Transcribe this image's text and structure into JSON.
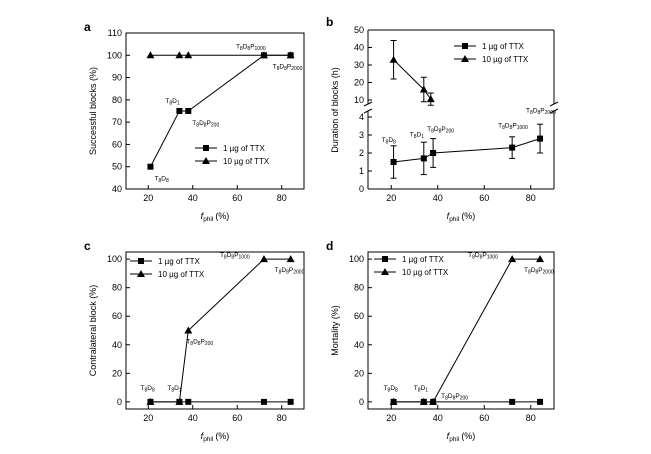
{
  "chart_data": [
    {
      "type": "line",
      "panel_letter": "a",
      "xlabel_main": "f",
      "xlabel_sub": "phil",
      "xlabel_unit": "(%)",
      "ylabel": "Successful blocks (%)",
      "xlim": [
        10,
        90
      ],
      "ylim": [
        40,
        110
      ],
      "xticks": [
        20,
        40,
        60,
        80
      ],
      "yticks": [
        40,
        50,
        60,
        70,
        80,
        90,
        100,
        110
      ],
      "legend_position": "lower-right",
      "series": [
        {
          "name": "1 µg of TTX",
          "marker": "square",
          "x": [
            21,
            34,
            38,
            72,
            84
          ],
          "y": [
            50,
            75,
            75,
            100,
            100
          ]
        },
        {
          "name": "10 µg of TTX",
          "marker": "triangle",
          "x": [
            21,
            34,
            38,
            72,
            84
          ],
          "y": [
            100,
            100,
            100,
            100,
            100
          ]
        }
      ],
      "annotations": [
        {
          "base": "T",
          "parts": [
            [
              "8",
              "sub"
            ],
            [
              "D",
              ""
            ],
            [
              "8",
              "sub"
            ]
          ],
          "x": 21,
          "y": 50
        },
        {
          "base": "T",
          "parts": [
            [
              "8",
              "sub"
            ],
            [
              "D",
              ""
            ],
            [
              "1",
              "sub"
            ]
          ],
          "x": 34,
          "y": 75
        },
        {
          "base": "T",
          "parts": [
            [
              "8",
              "sub"
            ],
            [
              "D",
              ""
            ],
            [
              "8",
              "sub"
            ],
            [
              "P",
              ""
            ],
            [
              "200",
              "sub"
            ]
          ],
          "x": 38,
          "y": 75
        },
        {
          "base": "T",
          "parts": [
            [
              "8",
              "sub"
            ],
            [
              "D",
              ""
            ],
            [
              "8",
              "sub"
            ],
            [
              "P",
              ""
            ],
            [
              "1000",
              "sub"
            ]
          ],
          "x": 72,
          "y": 100
        },
        {
          "base": "T",
          "parts": [
            [
              "8",
              "sub"
            ],
            [
              "D",
              ""
            ],
            [
              "8",
              "sub"
            ],
            [
              "P",
              ""
            ],
            [
              "2000",
              "sub"
            ]
          ],
          "x": 84,
          "y": 100
        }
      ]
    },
    {
      "type": "line",
      "panel_letter": "b",
      "xlabel_main": "f",
      "xlabel_sub": "phil",
      "xlabel_unit": "(%)",
      "ylabel": "Duration of blocks (h)",
      "xlim": [
        10,
        90
      ],
      "ylim_lower": [
        0,
        4
      ],
      "ylim_upper": [
        10,
        50
      ],
      "yticks_lower": [
        0,
        1,
        2,
        3,
        4
      ],
      "yticks_upper": [
        10,
        20,
        30,
        40,
        50
      ],
      "xticks": [
        20,
        40,
        60,
        80
      ],
      "broken_axis": true,
      "legend_position": "top-right",
      "series": [
        {
          "name": "1 µg of TTX",
          "marker": "square",
          "x": [
            21,
            34,
            38,
            72,
            84
          ],
          "y": [
            1.5,
            1.7,
            2.0,
            2.3,
            2.8
          ],
          "err": [
            0.9,
            0.9,
            0.8,
            0.6,
            0.8
          ]
        },
        {
          "name": "10 µg of TTX",
          "marker": "triangle",
          "x": [
            21,
            34,
            37
          ],
          "y": [
            33,
            16,
            10.5
          ],
          "err": [
            11,
            7,
            3.5
          ]
        }
      ],
      "annotations": [
        {
          "base": "T",
          "parts": [
            [
              "8",
              "sub"
            ],
            [
              "D",
              ""
            ],
            [
              "8",
              "sub"
            ]
          ],
          "x": 21,
          "y": 1.5
        },
        {
          "base": "T",
          "parts": [
            [
              "8",
              "sub"
            ],
            [
              "D",
              ""
            ],
            [
              "1",
              "sub"
            ]
          ],
          "x": 34,
          "y": 1.7
        },
        {
          "base": "T",
          "parts": [
            [
              "8",
              "sub"
            ],
            [
              "D",
              ""
            ],
            [
              "8",
              "sub"
            ],
            [
              "P",
              ""
            ],
            [
              "200",
              "sub"
            ]
          ],
          "x": 38,
          "y": 2.0
        },
        {
          "base": "T",
          "parts": [
            [
              "8",
              "sub"
            ],
            [
              "D",
              ""
            ],
            [
              "8",
              "sub"
            ],
            [
              "P",
              ""
            ],
            [
              "1000",
              "sub"
            ]
          ],
          "x": 72,
          "y": 2.3
        },
        {
          "base": "T",
          "parts": [
            [
              "8",
              "sub"
            ],
            [
              "D",
              ""
            ],
            [
              "8",
              "sub"
            ],
            [
              "P",
              ""
            ],
            [
              "2000",
              "sub"
            ]
          ],
          "x": 84,
          "y": 2.8
        }
      ]
    },
    {
      "type": "line",
      "panel_letter": "c",
      "xlabel_main": "f",
      "xlabel_sub": "phil",
      "xlabel_unit": "(%)",
      "ylabel": "Contralateral block (%)",
      "xlim": [
        10,
        90
      ],
      "ylim": [
        -5,
        105
      ],
      "xticks": [
        20,
        40,
        60,
        80
      ],
      "yticks": [
        0,
        20,
        40,
        60,
        80,
        100
      ],
      "legend_position": "top-left",
      "series": [
        {
          "name": "1 µg of TTX",
          "marker": "square",
          "x": [
            21,
            34,
            38,
            72,
            84
          ],
          "y": [
            0,
            0,
            0,
            0,
            0
          ]
        },
        {
          "name": "10 µg of TTX",
          "marker": "triangle",
          "x": [
            21,
            34,
            38,
            72,
            84
          ],
          "y": [
            0,
            0,
            50,
            100,
            100
          ]
        }
      ],
      "annotations": [
        {
          "base": "T",
          "parts": [
            [
              "8",
              "sub"
            ],
            [
              "D",
              ""
            ],
            [
              "8",
              "sub"
            ]
          ],
          "x": 21,
          "y": 0
        },
        {
          "base": "T",
          "parts": [
            [
              "8",
              "sub"
            ],
            [
              "D",
              ""
            ],
            [
              "1",
              "sub"
            ]
          ],
          "x": 34,
          "y": 0
        },
        {
          "base": "T",
          "parts": [
            [
              "8",
              "sub"
            ],
            [
              "D",
              ""
            ],
            [
              "8",
              "sub"
            ],
            [
              "P",
              ""
            ],
            [
              "200",
              "sub"
            ]
          ],
          "x": 38,
          "y": 50
        },
        {
          "base": "T",
          "parts": [
            [
              "8",
              "sub"
            ],
            [
              "D",
              ""
            ],
            [
              "8",
              "sub"
            ],
            [
              "P",
              ""
            ],
            [
              "1000",
              "sub"
            ]
          ],
          "x": 72,
          "y": 100
        },
        {
          "base": "T",
          "parts": [
            [
              "8",
              "sub"
            ],
            [
              "D",
              ""
            ],
            [
              "8",
              "sub"
            ],
            [
              "P",
              ""
            ],
            [
              "2000",
              "sub"
            ]
          ],
          "x": 84,
          "y": 100
        }
      ]
    },
    {
      "type": "line",
      "panel_letter": "d",
      "xlabel_main": "f",
      "xlabel_sub": "phil",
      "xlabel_unit": "(%)",
      "ylabel": "Mortality (%)",
      "xlim": [
        10,
        90
      ],
      "ylim": [
        -5,
        105
      ],
      "xticks": [
        20,
        40,
        60,
        80
      ],
      "yticks": [
        0,
        20,
        40,
        60,
        80,
        100
      ],
      "legend_position": "top-left",
      "series": [
        {
          "name": "1 µg of TTX",
          "marker": "square",
          "x": [
            21,
            34,
            38,
            72,
            84
          ],
          "y": [
            0,
            0,
            0,
            0,
            0
          ]
        },
        {
          "name": "10 µg of TTX",
          "marker": "triangle",
          "x": [
            21,
            34,
            38,
            72,
            84
          ],
          "y": [
            0,
            0,
            0,
            100,
            100
          ]
        }
      ],
      "annotations": [
        {
          "base": "T",
          "parts": [
            [
              "8",
              "sub"
            ],
            [
              "D",
              ""
            ],
            [
              "8",
              "sub"
            ]
          ],
          "x": 21,
          "y": 0
        },
        {
          "base": "T",
          "parts": [
            [
              "8",
              "sub"
            ],
            [
              "D",
              ""
            ],
            [
              "1",
              "sub"
            ]
          ],
          "x": 34,
          "y": 0
        },
        {
          "base": "T",
          "parts": [
            [
              "8",
              "sub"
            ],
            [
              "D",
              ""
            ],
            [
              "8",
              "sub"
            ],
            [
              "P",
              ""
            ],
            [
              "200",
              "sub"
            ]
          ],
          "x": 38,
          "y": 0
        },
        {
          "base": "T",
          "parts": [
            [
              "8",
              "sub"
            ],
            [
              "D",
              ""
            ],
            [
              "8",
              "sub"
            ],
            [
              "P",
              ""
            ],
            [
              "1000",
              "sub"
            ]
          ],
          "x": 72,
          "y": 100
        },
        {
          "base": "T",
          "parts": [
            [
              "8",
              "sub"
            ],
            [
              "D",
              ""
            ],
            [
              "8",
              "sub"
            ],
            [
              "P",
              ""
            ],
            [
              "2000",
              "sub"
            ]
          ],
          "x": 84,
          "y": 100
        }
      ]
    }
  ]
}
